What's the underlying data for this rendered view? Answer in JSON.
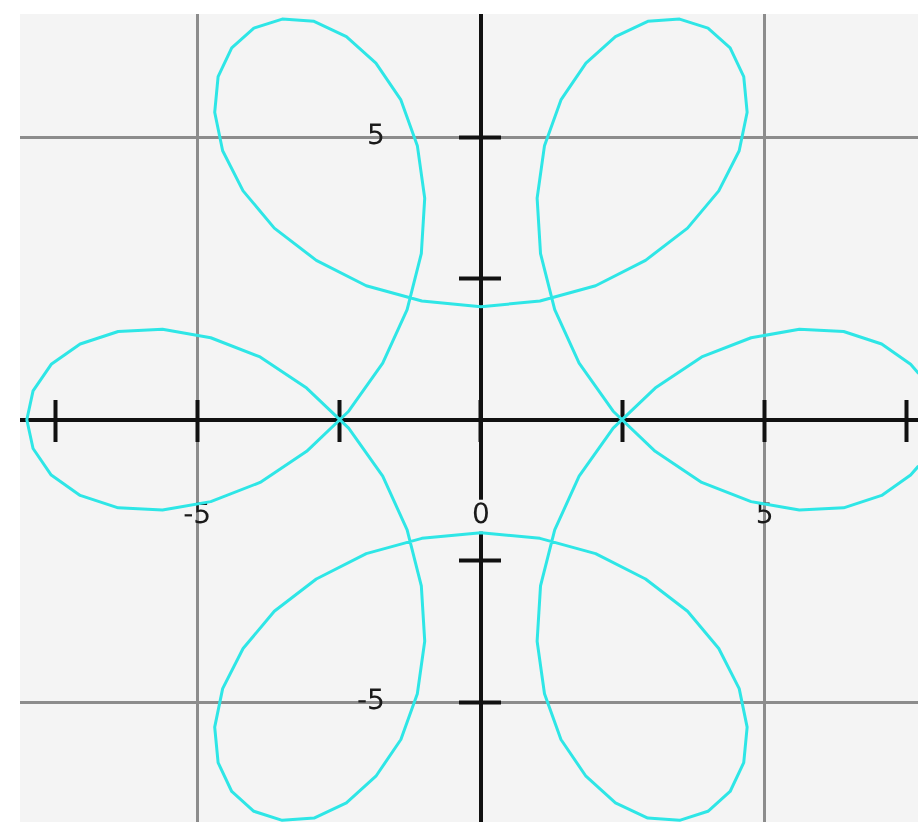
{
  "chart_data": {
    "type": "line",
    "x": [
      7.7,
      7.57,
      7.06,
      6.39,
      5.61,
      4.76,
      3.89,
      3.07,
      2.33,
      1.73,
      1.3,
      1.05,
      0.99,
      1.12,
      1.41,
      1.85,
      2.37,
      2.94,
      3.5,
      4.0,
      4.39,
      4.63,
      4.69,
      4.55,
      4.19,
      3.64,
      2.9,
      2.02,
      1.04,
      0,
      -1.04,
      -2.02,
      -2.9,
      -3.64,
      -4.19,
      -4.55,
      -4.69,
      -4.63,
      -4.39,
      -4.0,
      -3.5,
      -2.94,
      -2.37,
      -1.85,
      -1.41,
      -1.12,
      -0.99,
      -1.05,
      -1.3,
      -1.73,
      -2.33,
      -3.07,
      -3.89,
      -4.76,
      -5.61,
      -6.39,
      -7.06,
      -7.57,
      -7.89,
      -8.0,
      -7.89,
      -7.57,
      -7.06,
      -6.39,
      -5.61,
      -4.76,
      -3.89,
      -3.07,
      -2.33,
      -1.73,
      -1.3,
      -1.05,
      -0.99,
      -1.12,
      -1.41,
      -1.85,
      -2.37,
      -2.94,
      -3.5,
      -4.0,
      -4.39,
      -4.63,
      -4.69,
      -4.55,
      -4.19,
      -3.64,
      -2.9,
      -2.02,
      -1.04,
      0,
      1.04,
      2.02,
      2.9,
      3.64,
      4.19,
      4.55,
      4.69,
      4.63,
      4.39,
      4.0,
      3.5,
      2.94,
      2.37,
      1.85,
      1.41,
      1.12,
      0.99,
      1.05,
      1.3,
      1.73,
      2.33,
      3.07,
      3.89,
      4.76,
      5.61,
      6.39,
      7.06,
      7.57,
      7.7
    ],
    "series": [
      {
        "color": "#2ee6e6",
        "values": [
          -0.83,
          -0.98,
          -1.34,
          -1.56,
          -1.6,
          -1.45,
          -1.11,
          -0.56,
          0.15,
          1.0,
          1.95,
          2.94,
          3.92,
          4.85,
          5.66,
          6.31,
          6.78,
          7.05,
          7.09,
          6.93,
          6.58,
          6.07,
          5.44,
          4.76,
          4.05,
          3.39,
          2.82,
          2.37,
          2.1,
          2.0,
          2.1,
          2.37,
          2.82,
          3.39,
          4.05,
          4.76,
          5.44,
          6.07,
          6.58,
          6.93,
          7.09,
          7.05,
          6.78,
          6.31,
          5.66,
          4.85,
          3.92,
          2.94,
          1.95,
          1.0,
          0.15,
          -0.56,
          -1.11,
          -1.45,
          -1.6,
          -1.56,
          -1.34,
          -0.98,
          -0.51,
          0,
          0.51,
          0.98,
          1.34,
          1.56,
          1.6,
          1.45,
          1.11,
          0.56,
          -0.15,
          -1.0,
          -1.95,
          -2.94,
          -3.92,
          -4.85,
          -5.66,
          -6.31,
          -6.78,
          -7.05,
          -7.09,
          -6.93,
          -6.58,
          -6.07,
          -5.44,
          -4.76,
          -4.05,
          -3.39,
          -2.82,
          -2.37,
          -2.1,
          -2.0,
          -2.1,
          -2.37,
          -2.82,
          -3.39,
          -4.05,
          -4.76,
          -5.44,
          -6.07,
          -6.58,
          -6.93,
          -7.09,
          -7.05,
          -6.78,
          -6.31,
          -5.66,
          -4.85,
          -3.92,
          -2.94,
          -1.95,
          -1.0,
          -0.15,
          0.56,
          1.11,
          1.45,
          1.6,
          1.56,
          1.34,
          0.98,
          0.83
        ]
      }
    ],
    "xlim": [
      -8.12,
      7.7
    ],
    "ylim": [
      -7.12,
      7.18
    ],
    "xticks": [
      {
        "value": -7.5,
        "label": null
      },
      -5,
      {
        "value": -2.5,
        "label": null
      },
      0,
      {
        "value": 2.5,
        "label": null
      },
      5,
      {
        "value": 7.5,
        "label": null
      }
    ],
    "yticks": [
      -5,
      {
        "value": -2.5,
        "label": null
      },
      {
        "value": 2.5,
        "label": null
      },
      5
    ],
    "grid": true,
    "marker": "none"
  }
}
